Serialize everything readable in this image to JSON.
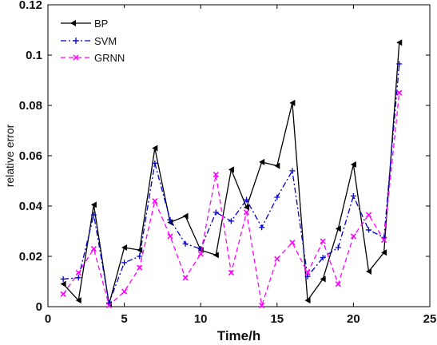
{
  "chart_data": {
    "type": "line",
    "title": "",
    "xlabel": "Time/h",
    "ylabel": "relative error",
    "xlim": [
      0,
      25
    ],
    "ylim": [
      0,
      0.12
    ],
    "xticks": [
      0,
      5,
      10,
      15,
      20,
      25
    ],
    "yticks": [
      0,
      0.02,
      0.04,
      0.06,
      0.08,
      0.1,
      0.12
    ],
    "ytick_labels": [
      "0",
      "0.02",
      "0.04",
      "0.06",
      "0.08",
      "0.1",
      "0.12"
    ],
    "grid": false,
    "legend_position": "top-left",
    "x": [
      1,
      2,
      3,
      4,
      5,
      6,
      7,
      8,
      9,
      10,
      11,
      12,
      13,
      14,
      15,
      16,
      17,
      18,
      19,
      20,
      21,
      22,
      23
    ],
    "series": [
      {
        "name": "BP",
        "color": "#000000",
        "line_style": "solid",
        "marker": "left-triangle",
        "values": [
          0.009,
          0.0025,
          0.0405,
          0.001,
          0.0235,
          0.0225,
          0.063,
          0.0335,
          0.036,
          0.0225,
          0.0205,
          0.0545,
          0.0395,
          0.0575,
          0.056,
          0.081,
          0.0025,
          0.011,
          0.031,
          0.0565,
          0.014,
          0.0215,
          0.105
        ]
      },
      {
        "name": "SVM",
        "color": "#0000cc",
        "line_style": "dash-dot",
        "marker": "plus",
        "values": [
          0.011,
          0.0115,
          0.0365,
          0.0015,
          0.0175,
          0.02,
          0.057,
          0.0345,
          0.025,
          0.023,
          0.0375,
          0.034,
          0.0425,
          0.0315,
          0.0435,
          0.054,
          0.012,
          0.0195,
          0.0235,
          0.044,
          0.0305,
          0.0275,
          0.0965
        ]
      },
      {
        "name": "GRNN",
        "color": "#ff00ff",
        "line_style": "dashed",
        "marker": "x",
        "values": [
          0.005,
          0.0135,
          0.023,
          0.0005,
          0.006,
          0.0155,
          0.042,
          0.028,
          0.0115,
          0.021,
          0.0525,
          0.0135,
          0.0375,
          0.0005,
          0.019,
          0.0255,
          0.0135,
          0.026,
          0.009,
          0.028,
          0.0365,
          0.0265,
          0.085
        ]
      }
    ]
  }
}
